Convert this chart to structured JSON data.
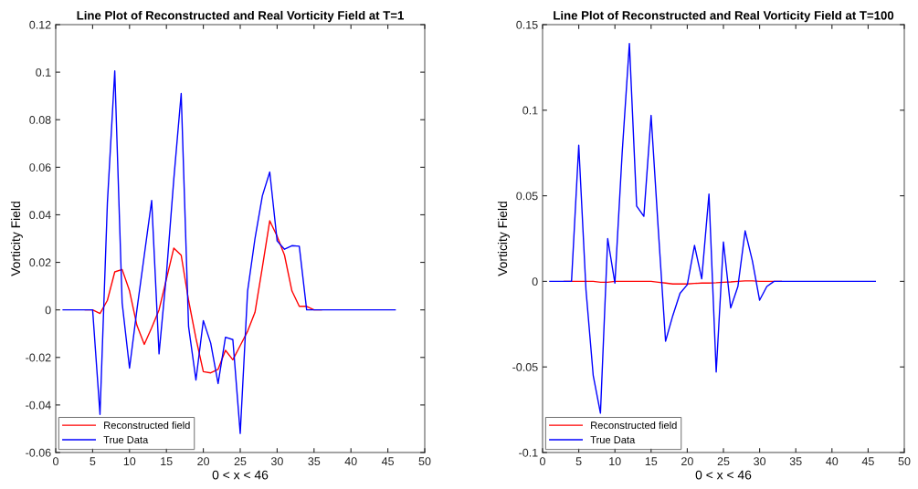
{
  "chart_data": [
    {
      "type": "line",
      "title": "Line Plot of Reconstructed and Real Vorticity Field at T=1",
      "xlabel": "0 < x < 46",
      "ylabel": "Vorticity Field",
      "x": [
        1,
        2,
        3,
        4,
        5,
        6,
        7,
        8,
        9,
        10,
        11,
        12,
        13,
        14,
        15,
        16,
        17,
        18,
        19,
        20,
        21,
        22,
        23,
        24,
        25,
        26,
        27,
        28,
        29,
        30,
        31,
        32,
        33,
        34,
        35,
        36,
        37,
        38,
        39,
        40,
        41,
        42,
        43,
        44,
        45,
        46
      ],
      "series": [
        {
          "name": "Reconstructed field",
          "color": "#ff0000",
          "values": [
            null,
            null,
            null,
            0,
            0,
            -0.0015,
            0.004,
            0.016,
            0.017,
            0.008,
            -0.0065,
            -0.0145,
            -0.0075,
            0,
            0.013,
            0.026,
            0.023,
            0.004,
            -0.012,
            -0.026,
            -0.0265,
            -0.025,
            -0.017,
            -0.021,
            -0.015,
            -0.009,
            -0.001,
            0.018,
            0.0375,
            0.031,
            0.023,
            0.008,
            0.0015,
            0.0015,
            0,
            0,
            null,
            null,
            null,
            null,
            null,
            null,
            null,
            null,
            null,
            null
          ]
        },
        {
          "name": "True Data",
          "color": "#0000ff",
          "values": [
            0,
            0,
            0,
            0,
            0,
            -0.044,
            0.045,
            0.1005,
            0.003,
            -0.0245,
            0,
            0.023,
            0.046,
            -0.0185,
            0.015,
            0.055,
            0.091,
            -0.007,
            -0.0295,
            -0.0045,
            -0.014,
            -0.031,
            -0.0115,
            -0.0125,
            -0.052,
            0.008,
            0.03,
            0.048,
            0.058,
            0.029,
            0.0255,
            0.027,
            0.0268,
            0,
            0,
            0,
            0,
            0,
            0,
            0,
            0,
            0,
            0,
            0,
            0,
            0
          ]
        }
      ],
      "xlim": [
        0,
        50
      ],
      "xticks": [
        0,
        5,
        10,
        15,
        20,
        25,
        30,
        35,
        40,
        45,
        50
      ],
      "ylim": [
        -0.06,
        0.12
      ],
      "yticks": [
        -0.06,
        -0.04,
        -0.02,
        0,
        0.02,
        0.04,
        0.06,
        0.08,
        0.1,
        0.12
      ],
      "legend": "bottom left",
      "grid": false
    },
    {
      "type": "line",
      "title": "Line Plot of Reconstructed and Real Vorticity Field at T=100",
      "xlabel": "0 < x < 46",
      "ylabel": "Vorticity Field",
      "x": [
        1,
        2,
        3,
        4,
        5,
        6,
        7,
        8,
        9,
        10,
        11,
        12,
        13,
        14,
        15,
        16,
        17,
        18,
        19,
        20,
        21,
        22,
        23,
        24,
        25,
        26,
        27,
        28,
        29,
        30,
        31,
        32,
        33,
        34,
        35,
        36,
        37,
        38,
        39,
        40,
        41,
        42,
        43,
        44,
        45,
        46
      ],
      "series": [
        {
          "name": "Reconstructed field",
          "color": "#ff0000",
          "values": [
            null,
            null,
            0,
            0,
            0,
            0,
            0,
            -0.0005,
            -0.0005,
            0,
            0,
            0,
            0,
            0,
            0,
            -0.0005,
            -0.001,
            -0.0015,
            -0.0015,
            -0.0015,
            -0.0012,
            -0.001,
            -0.001,
            -0.0008,
            -0.0005,
            -0.0003,
            0,
            0.0003,
            0.0003,
            0,
            0,
            0,
            0,
            null,
            null,
            null,
            null,
            null,
            null,
            null,
            null,
            null,
            null,
            null,
            null,
            null
          ]
        },
        {
          "name": "True Data",
          "color": "#0000ff",
          "values": [
            0,
            0,
            0,
            0,
            0.0795,
            -0.005,
            -0.055,
            -0.077,
            0.025,
            -0.001,
            0.075,
            0.139,
            0.044,
            0.038,
            0.097,
            0.03,
            -0.035,
            -0.02,
            -0.007,
            -0.002,
            0.021,
            0.0015,
            0.051,
            -0.053,
            0.023,
            -0.0155,
            -0.003,
            0.0295,
            0.012,
            -0.011,
            -0.003,
            0,
            0,
            0,
            0,
            0,
            0,
            0,
            0,
            0,
            0,
            0,
            0,
            0,
            0,
            0
          ]
        }
      ],
      "xlim": [
        0,
        50
      ],
      "xticks": [
        0,
        5,
        10,
        15,
        20,
        25,
        30,
        35,
        40,
        45,
        50
      ],
      "ylim": [
        -0.1,
        0.15
      ],
      "yticks": [
        -0.1,
        -0.05,
        0,
        0.05,
        0.1,
        0.15
      ],
      "legend": "bottom left",
      "grid": false
    }
  ]
}
